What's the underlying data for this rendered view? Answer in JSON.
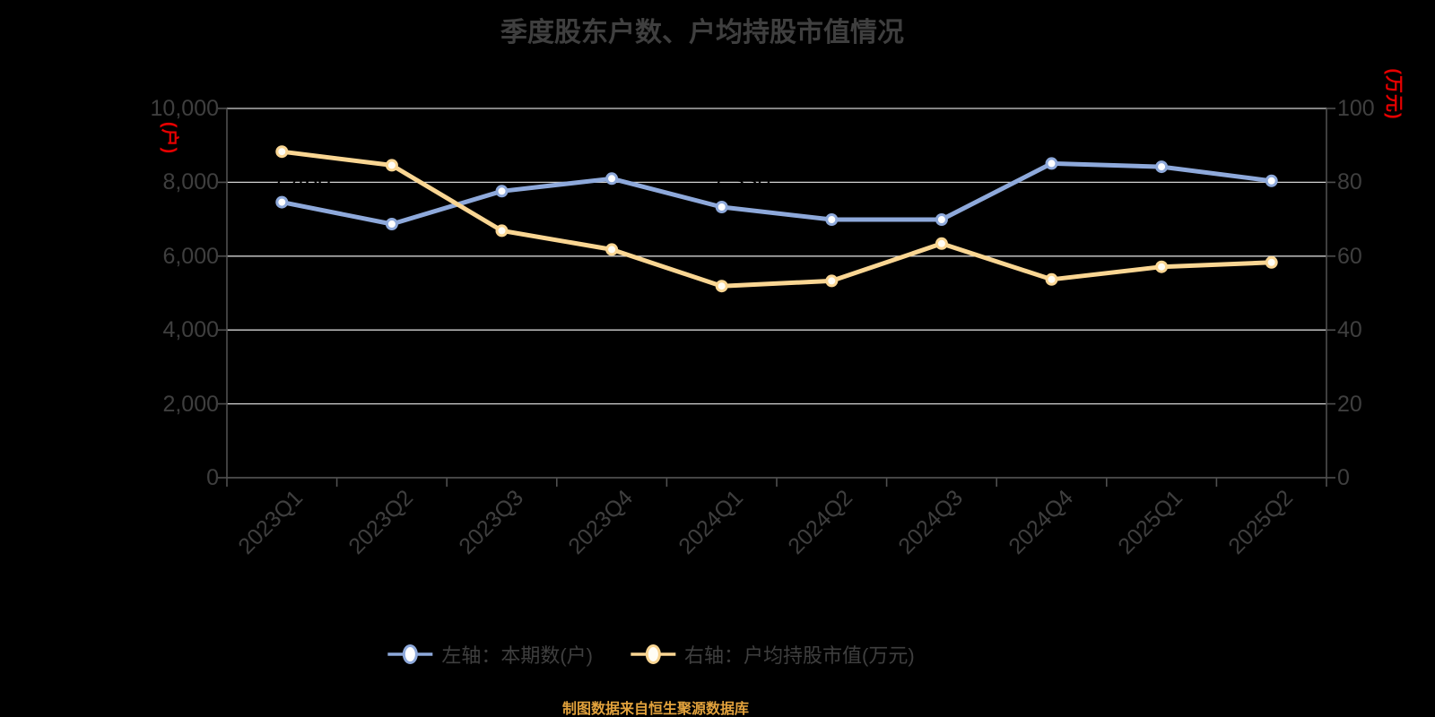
{
  "title": "季度股东户数、户均持股市值情况",
  "source_note": "制图数据来自恒生聚源数据库",
  "colors": {
    "background": "#000000",
    "text": "#3f3f3f",
    "axis_unit_red": "#e60000",
    "source_note_orange": "#e2a23c",
    "gridline": "#d2d2d2",
    "axis_line": "#4f4f4f",
    "series_shareholders_blue": "#8ea9db",
    "series_market_value_yellow": "#fad693"
  },
  "left_axis": {
    "unit": "(户)",
    "tick_values": [
      0,
      2000,
      4000,
      6000,
      8000,
      10000
    ],
    "tick_labels": [
      "0",
      "2,000",
      "4,000",
      "6,000",
      "8,000",
      "10,000"
    ]
  },
  "right_axis": {
    "unit": "(万元)",
    "tick_values": [
      0,
      20,
      40,
      60,
      80,
      100
    ],
    "tick_labels": [
      "0",
      "20",
      "40",
      "60",
      "80",
      "100"
    ]
  },
  "legend": [
    {
      "label": "左轴：本期数(户)",
      "color": "#8ea9db",
      "marker_fill": "#ffffff"
    },
    {
      "label": "右轴：户均持股市值(万元)",
      "color": "#fad693",
      "marker_fill": "#fffdf5"
    }
  ],
  "hidden_point_labels": [
    {
      "series": 0,
      "index": 0,
      "text": "7,460"
    },
    {
      "series": 0,
      "index": 4,
      "text": "7,330"
    }
  ],
  "chart_data": {
    "type": "line",
    "title": "季度股东户数、户均持股市值情况",
    "categories": [
      "2023Q1",
      "2023Q2",
      "2023Q3",
      "2023Q4",
      "2024Q1",
      "2024Q2",
      "2024Q3",
      "2024Q4",
      "2025Q1",
      "2025Q2"
    ],
    "series": [
      {
        "name": "左轴：本期数(户)",
        "axis": "left",
        "color": "#8ea9db",
        "marker_fill": "#ffffff",
        "values": [
          7460,
          6870,
          7760,
          8100,
          7330,
          6990,
          6990,
          8510,
          8420,
          8040
        ]
      },
      {
        "name": "右轴：户均持股市值(万元)",
        "axis": "right",
        "color": "#fad693",
        "marker_fill": "#fffdf5",
        "values": [
          88.3,
          84.6,
          66.9,
          61.8,
          51.9,
          53.3,
          63.4,
          53.7,
          57.1,
          58.3
        ]
      }
    ],
    "left_ylim": [
      0,
      10000
    ],
    "right_ylim": [
      0,
      100
    ],
    "grid": true,
    "legend_position": "bottom"
  }
}
